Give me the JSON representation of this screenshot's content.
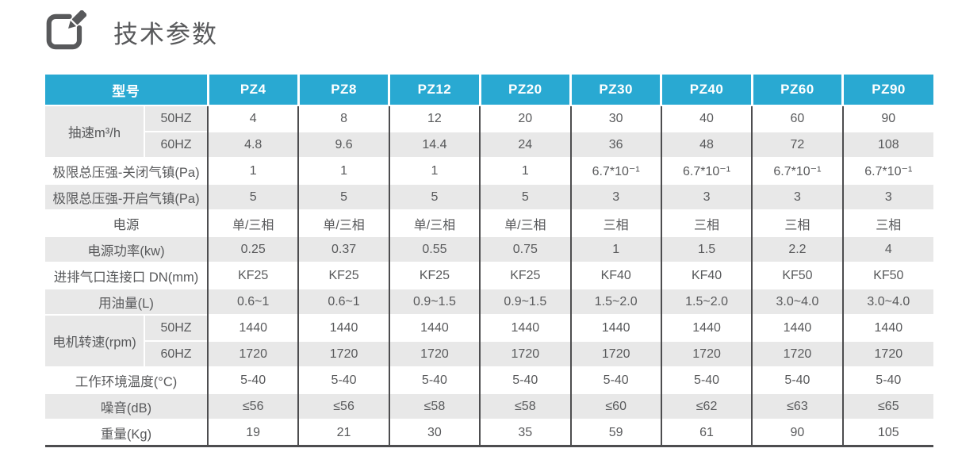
{
  "header": {
    "title": "技术参数",
    "icon": "edit-pencil-icon"
  },
  "colors": {
    "header_bg": "#29a9d2",
    "row_shade_bg": "#e8e8e8",
    "divider_dark": "#4d4d4f",
    "text": "#58595b",
    "header_text": "#ffffff"
  },
  "table": {
    "model_header": "型号",
    "models": [
      "PZ4",
      "PZ8",
      "PZ12",
      "PZ20",
      "PZ30",
      "PZ40",
      "PZ60",
      "PZ90"
    ],
    "rows": [
      {
        "label": "抽速m³/h",
        "rowspan": 2,
        "sub": "50HZ",
        "values": [
          "4",
          "8",
          "12",
          "20",
          "30",
          "40",
          "60",
          "90"
        ]
      },
      {
        "sub": "60HZ",
        "values": [
          "4.8",
          "9.6",
          "14.4",
          "24",
          "36",
          "48",
          "72",
          "108"
        ]
      },
      {
        "label": "极限总压强-关闭气镇(Pa)",
        "values": [
          "1",
          "1",
          "1",
          "1",
          "6.7*10⁻¹",
          "6.7*10⁻¹",
          "6.7*10⁻¹",
          "6.7*10⁻¹"
        ]
      },
      {
        "label": "极限总压强-开启气镇(Pa)",
        "values": [
          "5",
          "5",
          "5",
          "5",
          "3",
          "3",
          "3",
          "3"
        ]
      },
      {
        "label": "电源",
        "values": [
          "单/三相",
          "单/三相",
          "单/三相",
          "单/三相",
          "三相",
          "三相",
          "三相",
          "三相"
        ]
      },
      {
        "label": "电源功率(kw)",
        "values": [
          "0.25",
          "0.37",
          "0.55",
          "0.75",
          "1",
          "1.5",
          "2.2",
          "4"
        ]
      },
      {
        "label": "进排气口连接口 DN(mm)",
        "values": [
          "KF25",
          "KF25",
          "KF25",
          "KF25",
          "KF40",
          "KF40",
          "KF50",
          "KF50"
        ]
      },
      {
        "label": "用油量(L)",
        "values": [
          "0.6~1",
          "0.6~1",
          "0.9~1.5",
          "0.9~1.5",
          "1.5~2.0",
          "1.5~2.0",
          "3.0~4.0",
          "3.0~4.0"
        ]
      },
      {
        "label": "电机转速(rpm)",
        "rowspan": 2,
        "sub": "50HZ",
        "values": [
          "1440",
          "1440",
          "1440",
          "1440",
          "1440",
          "1440",
          "1440",
          "1440"
        ]
      },
      {
        "sub": "60HZ",
        "values": [
          "1720",
          "1720",
          "1720",
          "1720",
          "1720",
          "1720",
          "1720",
          "1720"
        ]
      },
      {
        "label": "工作环境温度(°C)",
        "values": [
          "5-40",
          "5-40",
          "5-40",
          "5-40",
          "5-40",
          "5-40",
          "5-40",
          "5-40"
        ]
      },
      {
        "label": "噪音(dB)",
        "values": [
          "≤56",
          "≤56",
          "≤58",
          "≤58",
          "≤60",
          "≤62",
          "≤63",
          "≤65"
        ]
      },
      {
        "label": "重量(Kg)",
        "values": [
          "19",
          "21",
          "30",
          "35",
          "59",
          "61",
          "90",
          "105"
        ]
      }
    ]
  }
}
